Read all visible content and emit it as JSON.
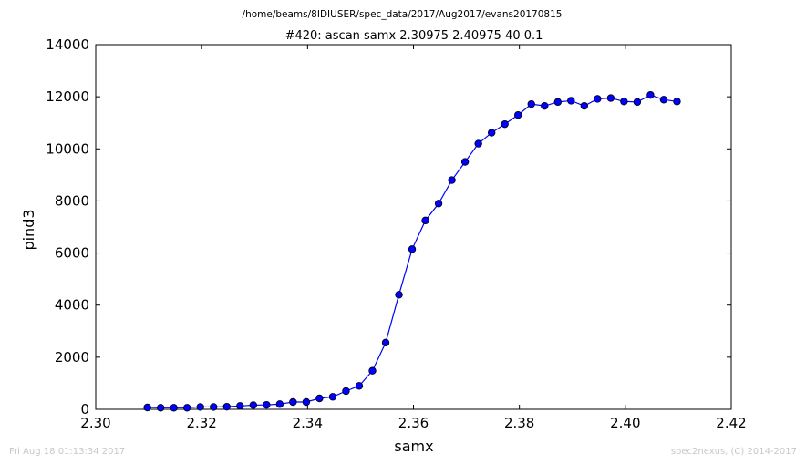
{
  "header": {
    "path": "/home/beams/8IDIUSER/spec_data/2017/Aug2017/evans20170815"
  },
  "footer": {
    "timestamp": "Fri Aug 18 01:13:34 2017",
    "credit": "spec2nexus, (C) 2014-2017"
  },
  "chart_data": {
    "type": "line",
    "title": "#420: ascan  samx 2.30975 2.40975  40 0.1",
    "xlabel": "samx",
    "ylabel": "pind3",
    "xlim": [
      2.3,
      2.42
    ],
    "ylim": [
      0,
      14000
    ],
    "xticks": [
      "2.30",
      "2.32",
      "2.34",
      "2.36",
      "2.38",
      "2.40",
      "2.42"
    ],
    "yticks": [
      "0",
      "2000",
      "4000",
      "6000",
      "8000",
      "10000",
      "12000",
      "14000"
    ],
    "xtick_values": [
      2.3,
      2.32,
      2.34,
      2.36,
      2.38,
      2.4,
      2.42
    ],
    "ytick_values": [
      0,
      2000,
      4000,
      6000,
      8000,
      10000,
      12000,
      14000
    ],
    "grid": false,
    "marker": "circle",
    "color": "#0000ff",
    "x": [
      2.30975,
      2.31225,
      2.31475,
      2.31725,
      2.31975,
      2.32225,
      2.32475,
      2.32725,
      2.32975,
      2.33225,
      2.33475,
      2.33725,
      2.33975,
      2.34225,
      2.34475,
      2.34725,
      2.34975,
      2.35225,
      2.35475,
      2.35725,
      2.35975,
      2.36225,
      2.36475,
      2.36725,
      2.36975,
      2.37225,
      2.37475,
      2.37725,
      2.37975,
      2.38225,
      2.38475,
      2.38725,
      2.38975,
      2.39225,
      2.39475,
      2.39725,
      2.39975,
      2.40225,
      2.40475,
      2.40725,
      2.40975
    ],
    "y": [
      70,
      60,
      60,
      60,
      90,
      90,
      100,
      130,
      160,
      170,
      200,
      280,
      280,
      420,
      480,
      700,
      900,
      1480,
      2560,
      4400,
      6150,
      7250,
      7900,
      8800,
      9500,
      10200,
      10620,
      10950,
      11300,
      11720,
      11650,
      11800,
      11850,
      11650,
      11920,
      11950,
      11820,
      11800,
      12070,
      11890,
      11820
    ]
  }
}
